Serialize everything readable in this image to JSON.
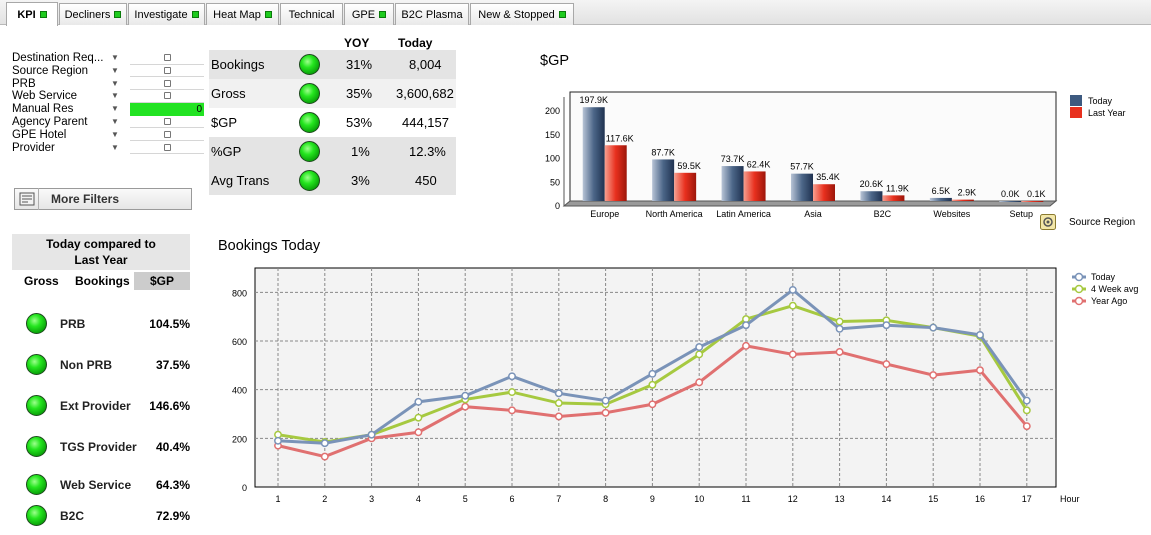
{
  "tabs": [
    {
      "label": "KPI",
      "status": true,
      "active": true
    },
    {
      "label": "Decliners",
      "status": true
    },
    {
      "label": "Investigate",
      "status": true
    },
    {
      "label": "Heat Map",
      "status": true
    },
    {
      "label": "Technical",
      "status": false
    },
    {
      "label": "GPE",
      "status": true
    },
    {
      "label": "B2C Plasma",
      "status": false
    },
    {
      "label": "New & Stopped",
      "status": true
    }
  ],
  "filters": [
    {
      "label": "Destination Req...",
      "checked": false
    },
    {
      "label": "Source Region",
      "checked": false
    },
    {
      "label": "PRB",
      "checked": false
    },
    {
      "label": "Web Service",
      "checked": false
    },
    {
      "label": "Manual Res",
      "value": "0",
      "highlight": "#22e322"
    },
    {
      "label": "Agency Parent",
      "checked": false
    },
    {
      "label": "GPE  Hotel",
      "checked": false
    },
    {
      "label": "Provider",
      "checked": false
    }
  ],
  "more_filters_label": "More Filters",
  "kpi": {
    "col_yoy": "YOY",
    "col_today": "Today",
    "rows": [
      {
        "name": "Bookings",
        "yoy": "31%",
        "today": "8,004"
      },
      {
        "name": "Gross",
        "yoy": "35%",
        "today": "3,600,682"
      },
      {
        "name": "$GP",
        "yoy": "53%",
        "today": "444,157"
      },
      {
        "name": "%GP",
        "yoy": "1%",
        "today": "12.3%"
      },
      {
        "name": "Avg Trans",
        "yoy": "3%",
        "today": "450"
      }
    ]
  },
  "comparison": {
    "title_line1": "Today compared to",
    "title_line2": "Last Year",
    "tabs": [
      "Gross",
      "Bookings",
      "$GP"
    ],
    "selected_tab": "$GP",
    "rows": [
      {
        "name": "PRB",
        "pct": "104.5%"
      },
      {
        "name": "Non PRB",
        "pct": "37.5%"
      },
      {
        "name": "Ext Provider",
        "pct": "146.6%"
      },
      {
        "name": "TGS Provider",
        "pct": "40.4%"
      },
      {
        "name": "Web Service",
        "pct": "64.3%"
      },
      {
        "name": "B2C",
        "pct": "72.9%"
      }
    ]
  },
  "colors": {
    "today": "#3d5a80",
    "last_year": "#e8301e",
    "four_week": "#a6c940",
    "year_ago": "#e07070",
    "today_line": "#7a93b8"
  },
  "chart_data": [
    {
      "type": "bar",
      "title": "$GP",
      "categories": [
        "Europe",
        "North America",
        "Latin America",
        "Asia",
        "B2C",
        "Websites",
        "Setup"
      ],
      "series": [
        {
          "name": "Today",
          "values": [
            197.9,
            87.7,
            73.7,
            57.7,
            20.6,
            6.5,
            0.0
          ],
          "labels": [
            "197.9K",
            "87.7K",
            "73.7K",
            "57.7K",
            "20.6K",
            "6.5K",
            "0.0K"
          ]
        },
        {
          "name": "Last Year",
          "values": [
            117.6,
            59.5,
            62.4,
            35.4,
            11.9,
            2.9,
            0.1
          ],
          "labels": [
            "117.6K",
            "59.5K",
            "62.4K",
            "35.4K",
            "11.9K",
            "2.9K",
            "0.1K"
          ]
        }
      ],
      "yticks": [
        0,
        50,
        100,
        150,
        200
      ],
      "ylim": [
        0,
        230
      ],
      "dimension_label": "Source Region",
      "legend": "right"
    },
    {
      "type": "line",
      "title": "Bookings Today",
      "xlabel": "Hour",
      "x": [
        1,
        2,
        3,
        4,
        5,
        6,
        7,
        8,
        9,
        10,
        11,
        12,
        13,
        14,
        15,
        16,
        17
      ],
      "series": [
        {
          "name": "Today",
          "values": [
            190,
            180,
            215,
            350,
            375,
            455,
            385,
            355,
            465,
            575,
            665,
            810,
            650,
            665,
            655,
            625,
            355
          ]
        },
        {
          "name": "4 Week avg",
          "values": [
            215,
            185,
            215,
            285,
            360,
            390,
            345,
            340,
            420,
            545,
            690,
            745,
            680,
            685,
            655,
            620,
            315
          ]
        },
        {
          "name": "Year Ago",
          "values": [
            170,
            125,
            200,
            225,
            330,
            315,
            290,
            305,
            340,
            430,
            580,
            545,
            555,
            505,
            460,
            480,
            250
          ]
        }
      ],
      "yticks": [
        0,
        200,
        400,
        600,
        800
      ],
      "ylim": [
        0,
        900
      ],
      "grid": true,
      "legend": "top-right"
    }
  ]
}
